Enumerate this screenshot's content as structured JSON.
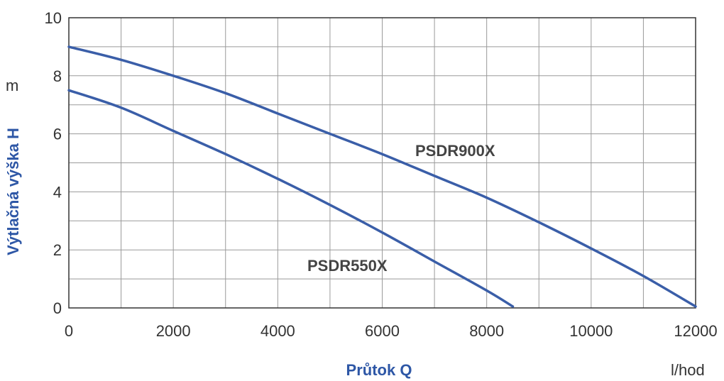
{
  "chart_data": {
    "type": "line",
    "xlabel": "Průtok Q",
    "ylabel": "Výtlačná výška H",
    "x_unit": "l/hod",
    "y_unit": "m",
    "xlim": [
      0,
      12000
    ],
    "ylim": [
      0,
      10
    ],
    "x_ticks": [
      "0",
      "2000",
      "4000",
      "6000",
      "8000",
      "10000",
      "12000"
    ],
    "y_ticks": [
      "0",
      "2",
      "4",
      "6",
      "8",
      "10"
    ],
    "grid": true,
    "line_color": "#3a5ea8",
    "axis_title_color": "#2e57a6",
    "series": [
      {
        "name": "PSDR900X",
        "x": [
          0,
          1000,
          2000,
          3000,
          4000,
          5000,
          6000,
          7000,
          8000,
          9000,
          10000,
          11000,
          12000
        ],
        "y": [
          9.0,
          8.55,
          8.0,
          7.4,
          6.7,
          6.0,
          5.3,
          4.55,
          3.8,
          2.95,
          2.05,
          1.1,
          0.05
        ]
      },
      {
        "name": "PSDR550X",
        "x": [
          0,
          1000,
          2000,
          3000,
          4000,
          5000,
          6000,
          7000,
          8000,
          8500
        ],
        "y": [
          7.5,
          6.9,
          6.1,
          5.3,
          4.45,
          3.55,
          2.6,
          1.6,
          0.6,
          0.05
        ]
      }
    ]
  }
}
